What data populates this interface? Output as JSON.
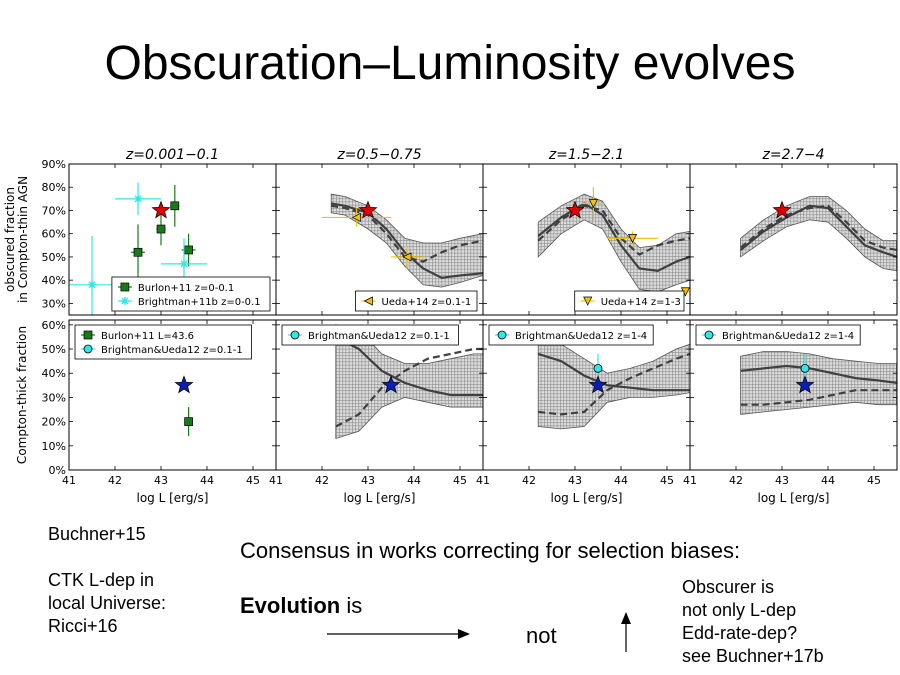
{
  "title": "Obscuration–Luminosity evolves",
  "notes": {
    "ref_left": "Buchner+15",
    "ctk_note": "CTK L-dep in\nlocal Universe:\nRicci+16",
    "consensus": "Consensus in works correcting for selection biases:",
    "evolution_bold": "Evolution",
    "evolution_rest": " is",
    "not_word": "not",
    "obscurer_note": "Obscurer is\nnot only L-dep\nEdd-rate-dep?\nsee Buchner+17b"
  },
  "colors": {
    "band_fill": "#d4d4d4",
    "curve": "#404040",
    "star_top": "#dd0000",
    "star_bottom": "#0a1fb4",
    "burlon": "#1a7a1a",
    "brightman": "#33e6e6",
    "ueda14": "#f2c200"
  },
  "chart_data": {
    "type": "scatter",
    "x_ticks": [
      "41",
      "42",
      "43",
      "44",
      "45"
    ],
    "xlabel": "log L [erg/s]",
    "rows": [
      {
        "ylabel": "obscured fraction\nin Compton-thin AGN",
        "ylim": [
          25,
          90
        ],
        "y_ticks": [
          "30%",
          "40%",
          "50%",
          "60%",
          "70%",
          "80%",
          "90%"
        ]
      },
      {
        "ylabel": "Compton-thick fraction",
        "ylim": [
          0,
          62
        ],
        "y_ticks": [
          "0%",
          "10%",
          "20%",
          "30%",
          "40%",
          "50%",
          "60%"
        ]
      }
    ],
    "panels": [
      {
        "title": "z=0.001−0.1",
        "row": 0,
        "col": 0,
        "xlim": [
          41,
          45.5
        ],
        "stars": [
          {
            "x": 43.0,
            "y": 70
          }
        ],
        "series": [
          {
            "name": "Burlon+11 z=0-0.1",
            "marker": "square",
            "color": "burlon",
            "points": [
              {
                "x": 42.5,
                "y": 52,
                "xe": 0.15,
                "ye": 12
              },
              {
                "x": 43.0,
                "y": 62,
                "xe": 0.1,
                "ye": 7
              },
              {
                "x": 43.3,
                "y": 72,
                "xe": 0.1,
                "ye": 9
              },
              {
                "x": 43.6,
                "y": 53,
                "xe": 0.15,
                "ye": 7
              },
              {
                "x": 43.8,
                "y": 37,
                "xe": 0.1,
                "ye": 4
              }
            ]
          },
          {
            "name": "Brightman+11b z=0-0.1",
            "marker": "star",
            "color": "brightman",
            "points": [
              {
                "x": 41.5,
                "y": 38,
                "xe": 0.5,
                "ye": 21
              },
              {
                "x": 42.5,
                "y": 75,
                "xe": 0.5,
                "ye": 7
              },
              {
                "x": 43.5,
                "y": 47,
                "xe": 0.5,
                "ye": 11
              }
            ]
          }
        ]
      },
      {
        "title": "z=0.5−0.75",
        "row": 0,
        "col": 1,
        "xlim": [
          41,
          45.5
        ],
        "stars": [
          {
            "x": 43.0,
            "y": 70
          }
        ],
        "band": {
          "x": [
            42.2,
            42.5,
            43.0,
            43.4,
            43.8,
            44.2,
            44.6,
            45.0,
            45.5
          ],
          "lo": [
            69,
            68,
            62,
            56,
            46,
            38,
            37,
            39,
            42
          ],
          "hi": [
            77,
            76,
            72,
            66,
            58,
            56,
            56,
            58,
            60
          ]
        },
        "curves": [
          {
            "style": "solid",
            "x": [
              42.2,
              42.5,
              43.0,
              43.4,
              43.8,
              44.2,
              44.6,
              45.0,
              45.5
            ],
            "y": [
              73,
              72,
              69,
              62,
              52,
              45,
              41,
              42,
              43
            ]
          },
          {
            "style": "dashed",
            "x": [
              42.2,
              42.5,
              43.0,
              43.4,
              43.8,
              44.2,
              44.6,
              45.0,
              45.5
            ],
            "y": [
              72,
              71,
              68,
              60,
              50,
              48,
              52,
              55,
              57
            ]
          }
        ],
        "series": [
          {
            "name": "Ueda+14 z=0.1-1",
            "marker": "tri-left",
            "color": "ueda14",
            "points": [
              {
                "x": 42.75,
                "y": 67,
                "xe": 0.75,
                "ye": 4
              },
              {
                "x": 43.85,
                "y": 50,
                "xe": 0.35,
                "ye": 5
              },
              {
                "x": 44.7,
                "y": 33,
                "xe": 0.5,
                "ye": 0
              }
            ]
          }
        ]
      },
      {
        "title": "z=1.5−2.1",
        "row": 0,
        "col": 2,
        "xlim": [
          41,
          45.5
        ],
        "stars": [
          {
            "x": 43.0,
            "y": 70
          }
        ],
        "band": {
          "x": [
            42.2,
            42.7,
            43.2,
            43.6,
            44.0,
            44.4,
            44.8,
            45.2,
            45.5
          ],
          "lo": [
            50,
            60,
            66,
            62,
            48,
            36,
            35,
            38,
            40
          ],
          "hi": [
            65,
            72,
            77,
            74,
            62,
            54,
            55,
            60,
            61
          ]
        },
        "curves": [
          {
            "style": "solid",
            "x": [
              42.2,
              42.7,
              43.2,
              43.6,
              44.0,
              44.4,
              44.8,
              45.2,
              45.5
            ],
            "y": [
              59,
              67,
              73,
              68,
              55,
              45,
              44,
              48,
              50
            ]
          },
          {
            "style": "dashed",
            "x": [
              42.2,
              42.7,
              43.2,
              43.6,
              44.0,
              44.4,
              44.8,
              45.2,
              45.5
            ],
            "y": [
              57,
              66,
              72,
              70,
              58,
              51,
              55,
              57,
              58
            ]
          }
        ],
        "series": [
          {
            "name": "Ueda+14 z=1-3",
            "marker": "tri-down",
            "color": "ueda14",
            "points": [
              {
                "x": 43.4,
                "y": 73,
                "xe": 0.25,
                "ye": 7
              },
              {
                "x": 44.25,
                "y": 58,
                "xe": 0.55,
                "ye": 3
              },
              {
                "x": 45.4,
                "y": 35,
                "xe": 0.4,
                "ye": 0
              }
            ]
          }
        ]
      },
      {
        "title": "z=2.7−4",
        "row": 0,
        "col": 3,
        "xlim": [
          41,
          45.5
        ],
        "stars": [
          {
            "x": 43.0,
            "y": 70
          }
        ],
        "band": {
          "x": [
            42.1,
            42.6,
            43.1,
            43.6,
            44.0,
            44.4,
            44.8,
            45.2,
            45.5
          ],
          "lo": [
            50,
            57,
            63,
            66,
            65,
            58,
            50,
            45,
            44
          ],
          "hi": [
            58,
            66,
            72,
            76,
            76,
            70,
            62,
            57,
            57
          ]
        },
        "curves": [
          {
            "style": "solid",
            "x": [
              42.1,
              42.6,
              43.1,
              43.6,
              44.0,
              44.4,
              44.8,
              45.2,
              45.5
            ],
            "y": [
              53,
              61,
              67,
              72,
              71,
              63,
              55,
              52,
              50
            ]
          },
          {
            "style": "dashed",
            "x": [
              42.1,
              42.6,
              43.1,
              43.6,
              44.0,
              44.4,
              44.8,
              45.2,
              45.5
            ],
            "y": [
              54,
              62,
              68,
              71,
              72,
              65,
              57,
              54,
              53
            ]
          }
        ],
        "series": []
      },
      {
        "title": "",
        "row": 1,
        "col": 0,
        "xlim": [
          41,
          45.5
        ],
        "stars": [
          {
            "x": 43.5,
            "y": 35
          }
        ],
        "series": [
          {
            "name": "Burlon+11 L=43.6",
            "marker": "square",
            "color": "burlon",
            "points": [
              {
                "x": 43.6,
                "y": 20,
                "xe": 0,
                "ye": 6
              }
            ]
          },
          {
            "name": "Brightman&Ueda12 z=0.1-1",
            "marker": "circle",
            "color": "brightman",
            "points": []
          }
        ]
      },
      {
        "title": "",
        "row": 1,
        "col": 1,
        "xlim": [
          41,
          45.5
        ],
        "stars": [
          {
            "x": 43.5,
            "y": 35
          }
        ],
        "band": {
          "x": [
            42.3,
            42.8,
            43.3,
            43.8,
            44.3,
            44.8,
            45.3,
            45.5
          ],
          "lo": [
            13,
            16,
            26,
            30,
            28,
            26,
            26,
            26
          ],
          "hi": [
            60,
            58,
            48,
            44,
            44,
            46,
            48,
            48
          ]
        },
        "curves": [
          {
            "style": "solid",
            "x": [
              42.3,
              42.8,
              43.3,
              43.8,
              44.3,
              44.8,
              45.3,
              45.5
            ],
            "y": [
              55,
              50,
              41,
              36,
              33,
              31,
              31,
              31
            ]
          },
          {
            "style": "dashed",
            "x": [
              42.3,
              42.8,
              43.3,
              43.8,
              44.3,
              44.8,
              45.3,
              45.5
            ],
            "y": [
              18,
              23,
              34,
              41,
              46,
              48,
              50,
              50
            ]
          }
        ],
        "series": [
          {
            "name": "Brightman&Ueda12 z=0.1-1",
            "marker": "circle",
            "color": "brightman",
            "points": [
              {
                "x": 43.5,
                "y": 35,
                "xe": 0,
                "ye": 3
              }
            ]
          }
        ]
      },
      {
        "title": "",
        "row": 1,
        "col": 2,
        "xlim": [
          41,
          45.5
        ],
        "stars": [
          {
            "x": 43.5,
            "y": 35
          }
        ],
        "band": {
          "x": [
            42.2,
            42.7,
            43.2,
            43.7,
            44.2,
            44.7,
            45.2,
            45.5
          ],
          "lo": [
            18,
            17,
            18,
            28,
            30,
            30,
            31,
            32
          ],
          "hi": [
            55,
            52,
            46,
            40,
            42,
            45,
            50,
            52
          ]
        },
        "curves": [
          {
            "style": "solid",
            "x": [
              42.2,
              42.7,
              43.2,
              43.7,
              44.2,
              44.7,
              45.2,
              45.5
            ],
            "y": [
              48,
              45,
              39,
              35,
              34,
              33,
              33,
              33
            ]
          },
          {
            "style": "dashed",
            "x": [
              42.2,
              42.7,
              43.2,
              43.7,
              44.2,
              44.7,
              45.2,
              45.5
            ],
            "y": [
              24,
              23,
              24,
              33,
              38,
              42,
              46,
              48
            ]
          }
        ],
        "series": [
          {
            "name": "Brightman&Ueda12 z=1-4",
            "marker": "circle",
            "color": "brightman",
            "points": [
              {
                "x": 43.5,
                "y": 42,
                "xe": 0,
                "ye": 6
              }
            ]
          }
        ]
      },
      {
        "title": "",
        "row": 1,
        "col": 3,
        "xlim": [
          41,
          45.5
        ],
        "stars": [
          {
            "x": 43.5,
            "y": 35
          }
        ],
        "band": {
          "x": [
            42.1,
            42.6,
            43.1,
            43.6,
            44.1,
            44.6,
            45.1,
            45.5
          ],
          "lo": [
            23,
            24,
            25,
            26,
            27,
            28,
            27,
            27
          ],
          "hi": [
            47,
            49,
            49,
            48,
            46,
            45,
            44,
            44
          ]
        },
        "curves": [
          {
            "style": "solid",
            "x": [
              42.1,
              42.6,
              43.1,
              43.6,
              44.1,
              44.6,
              45.1,
              45.5
            ],
            "y": [
              41,
              42,
              43,
              42,
              40,
              38,
              37,
              36
            ]
          },
          {
            "style": "dashed",
            "x": [
              42.1,
              42.6,
              43.1,
              43.6,
              44.1,
              44.6,
              45.1,
              45.5
            ],
            "y": [
              27,
              27,
              28,
              29,
              31,
              33,
              33,
              33
            ]
          }
        ],
        "series": [
          {
            "name": "Brightman&Ueda12 z=1-4",
            "marker": "circle",
            "color": "brightman",
            "points": [
              {
                "x": 43.5,
                "y": 42,
                "xe": 0,
                "ye": 6
              }
            ]
          }
        ]
      }
    ]
  }
}
